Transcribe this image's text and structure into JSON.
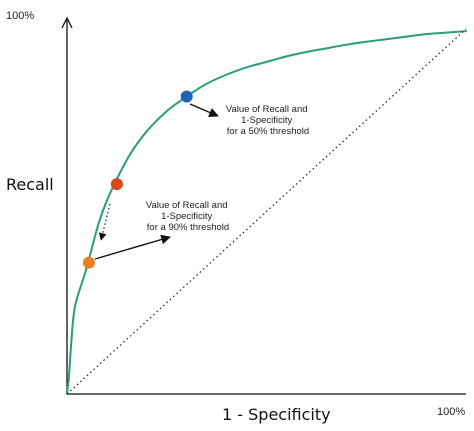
{
  "chart_data": {
    "type": "line",
    "title": "",
    "xlabel": "1 - Specificity",
    "ylabel": "Recall",
    "x_max_label": "100%",
    "y_max_label": "100%",
    "xlim": [
      0,
      1
    ],
    "ylim": [
      0,
      1
    ],
    "grid": false,
    "series": [
      {
        "kind": "roc-curve",
        "color": "#2a9d7a",
        "x": [
          0.0,
          0.005,
          0.01,
          0.015,
          0.02,
          0.03,
          0.045,
          0.06,
          0.08,
          0.1,
          0.13,
          0.16,
          0.2,
          0.25,
          0.3,
          0.35,
          0.4,
          0.45,
          0.5,
          0.55,
          0.6,
          0.65,
          0.7,
          0.75,
          0.8,
          0.85,
          0.9,
          0.95,
          1.0
        ],
        "y": [
          0.0,
          0.05,
          0.13,
          0.2,
          0.24,
          0.28,
          0.33,
          0.39,
          0.47,
          0.53,
          0.6,
          0.66,
          0.72,
          0.775,
          0.815,
          0.85,
          0.875,
          0.895,
          0.91,
          0.925,
          0.937,
          0.947,
          0.957,
          0.965,
          0.972,
          0.979,
          0.986,
          0.99,
          0.994
        ]
      },
      {
        "kind": "diagonal",
        "style": "dotted",
        "color": "#222222",
        "x": [
          0,
          1
        ],
        "y": [
          0,
          1
        ]
      }
    ],
    "points": [
      {
        "id": "blue-point",
        "x": 0.3,
        "y": 0.815,
        "color": "#1f63b5"
      },
      {
        "id": "red-point",
        "x": 0.125,
        "y": 0.575,
        "color": "#d9471a"
      },
      {
        "id": "orange-point",
        "x": 0.055,
        "y": 0.36,
        "color": "#e8801f"
      }
    ],
    "annotations": [
      {
        "id": "annotation-50",
        "lines": [
          "Value of Recall and",
          "1-Specificity",
          "for a 50% threshold"
        ]
      },
      {
        "id": "annotation-90",
        "lines": [
          "Value of Recall and",
          "1-Specificity",
          "for a 90% threshold"
        ]
      }
    ]
  }
}
